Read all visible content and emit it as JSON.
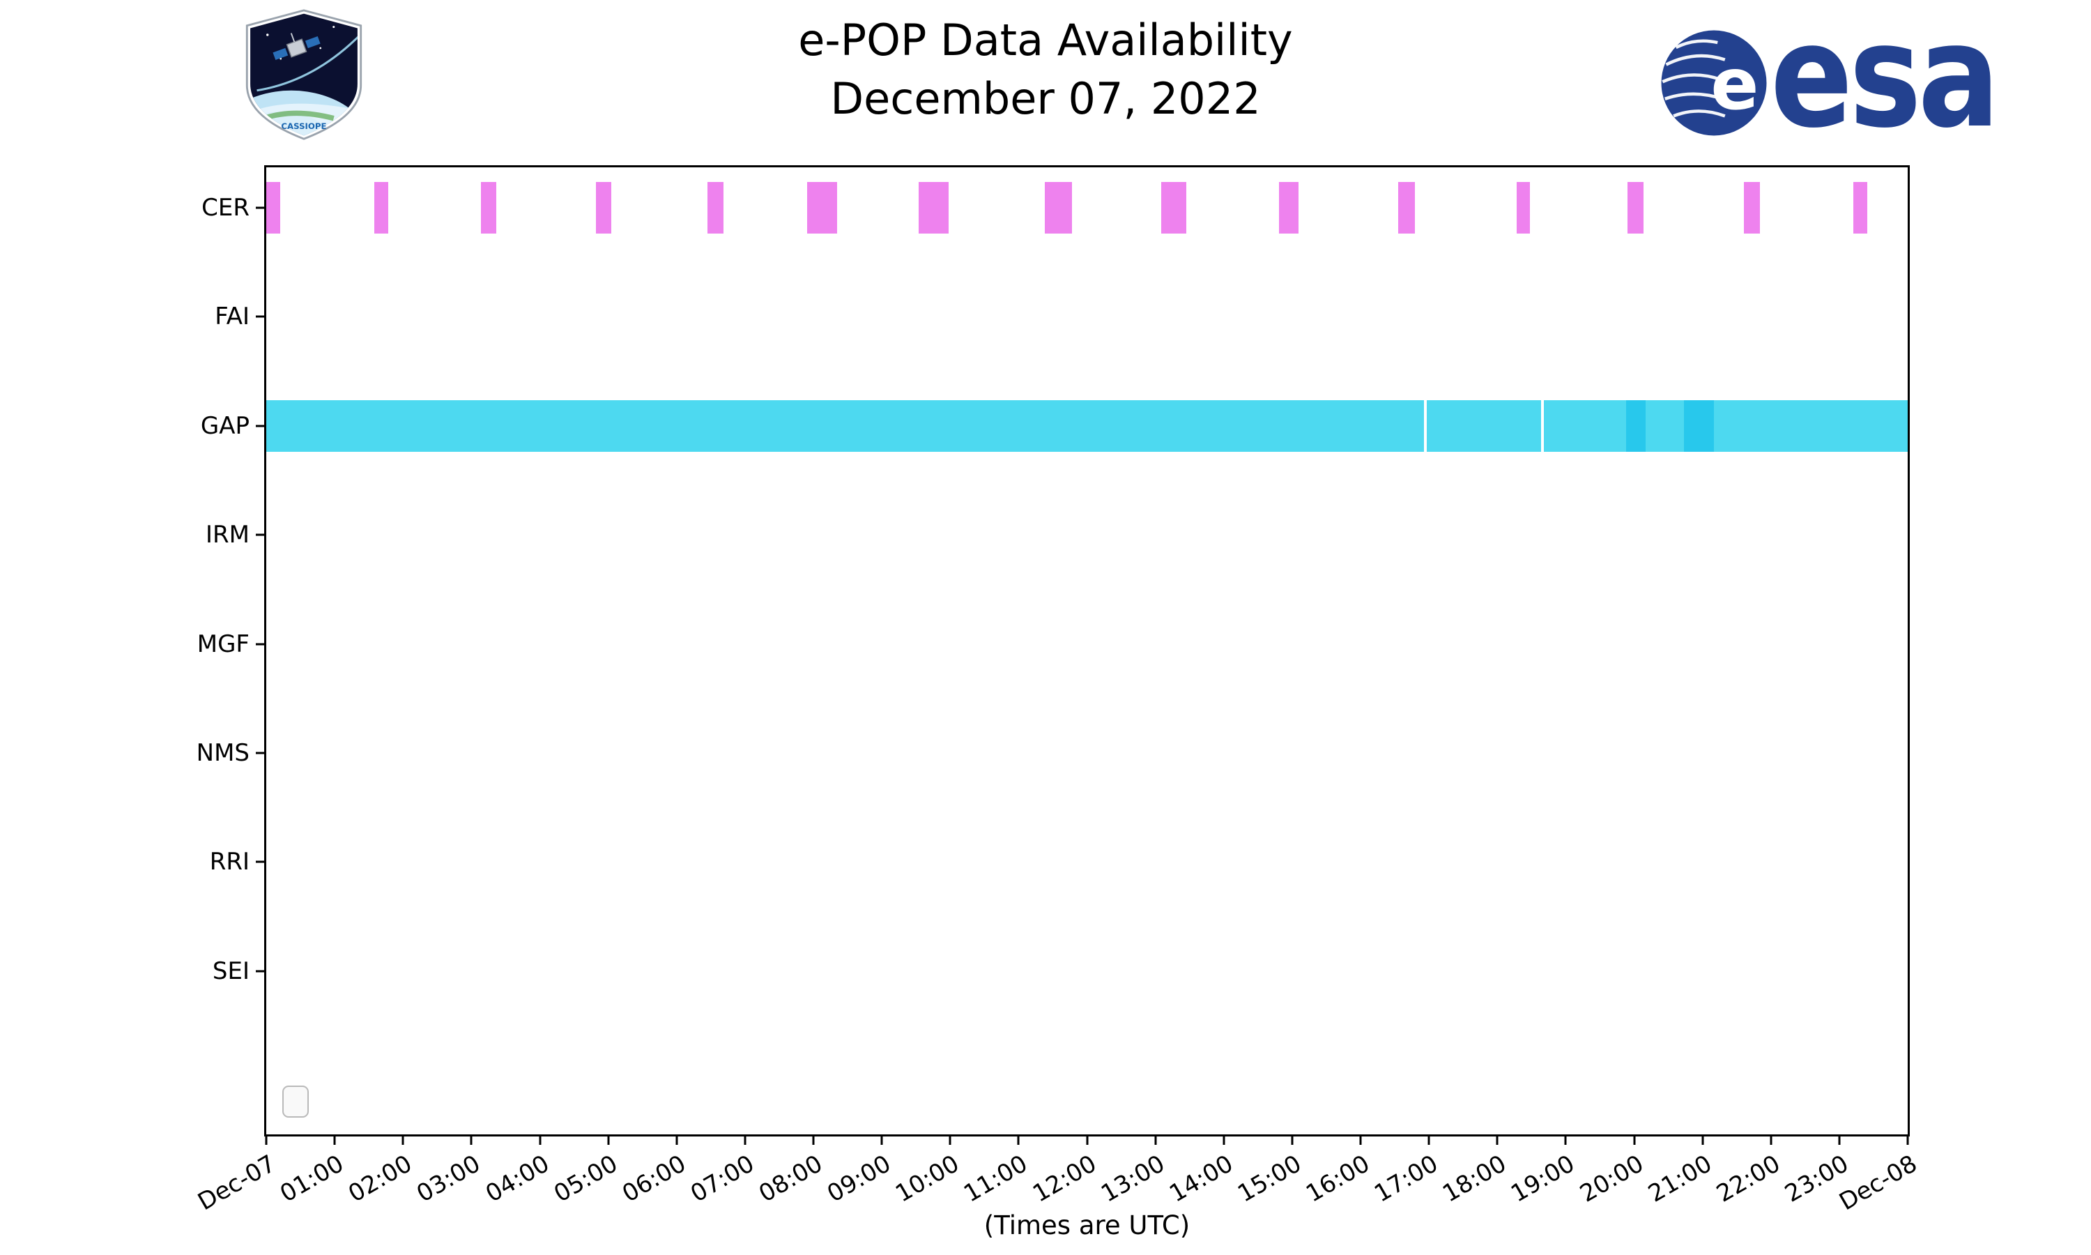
{
  "header": {
    "title_line1": "e-POP Data Availability",
    "title_line2": "December 07, 2022",
    "cassiope_label": "CASSIOPE",
    "esa_label": "esa"
  },
  "footer": {
    "x_caption": "(Times are UTC)"
  },
  "colors": {
    "cer_bar": "#EE82EE",
    "gap_bar": "#4DD9F0",
    "gap_bar_dark": "#28C8EC",
    "axis": "#000000",
    "esa_blue": "#23418F"
  },
  "chart_data": {
    "type": "timeline",
    "title": "e-POP Data Availability",
    "subtitle": "December 07, 2022",
    "xlabel": "(Times are UTC)",
    "x_range_hours": [
      0,
      24
    ],
    "x_tick_labels": [
      "Dec-07",
      "01:00",
      "02:00",
      "03:00",
      "04:00",
      "05:00",
      "06:00",
      "07:00",
      "08:00",
      "09:00",
      "10:00",
      "11:00",
      "12:00",
      "13:00",
      "14:00",
      "15:00",
      "16:00",
      "17:00",
      "18:00",
      "19:00",
      "20:00",
      "21:00",
      "22:00",
      "23:00",
      "Dec-08"
    ],
    "rows": [
      "CER",
      "FAI",
      "GAP",
      "IRM",
      "MGF",
      "NMS",
      "RRI",
      "SEI"
    ],
    "legend_box_visible": true,
    "series": [
      {
        "row": "CER",
        "color": "#EE82EE",
        "intervals": [
          [
            0.0,
            0.2
          ],
          [
            1.58,
            1.78
          ],
          [
            3.14,
            3.36
          ],
          [
            4.82,
            5.04
          ],
          [
            6.45,
            6.69
          ],
          [
            7.91,
            8.35
          ],
          [
            9.54,
            9.98
          ],
          [
            11.38,
            11.78
          ],
          [
            13.09,
            13.45
          ],
          [
            14.81,
            15.09
          ],
          [
            16.55,
            16.79
          ],
          [
            18.28,
            18.48
          ],
          [
            19.9,
            20.14
          ],
          [
            21.6,
            21.84
          ],
          [
            23.21,
            23.41
          ]
        ]
      },
      {
        "row": "GAP",
        "color": "#4DD9F0",
        "intervals": [
          [
            0.0,
            16.93
          ],
          [
            16.97,
            18.64
          ],
          [
            18.68,
            24.0
          ]
        ],
        "dark_color": "#28C8EC",
        "dark_intervals": [
          [
            19.88,
            20.17
          ],
          [
            20.73,
            21.17
          ]
        ]
      }
    ]
  }
}
